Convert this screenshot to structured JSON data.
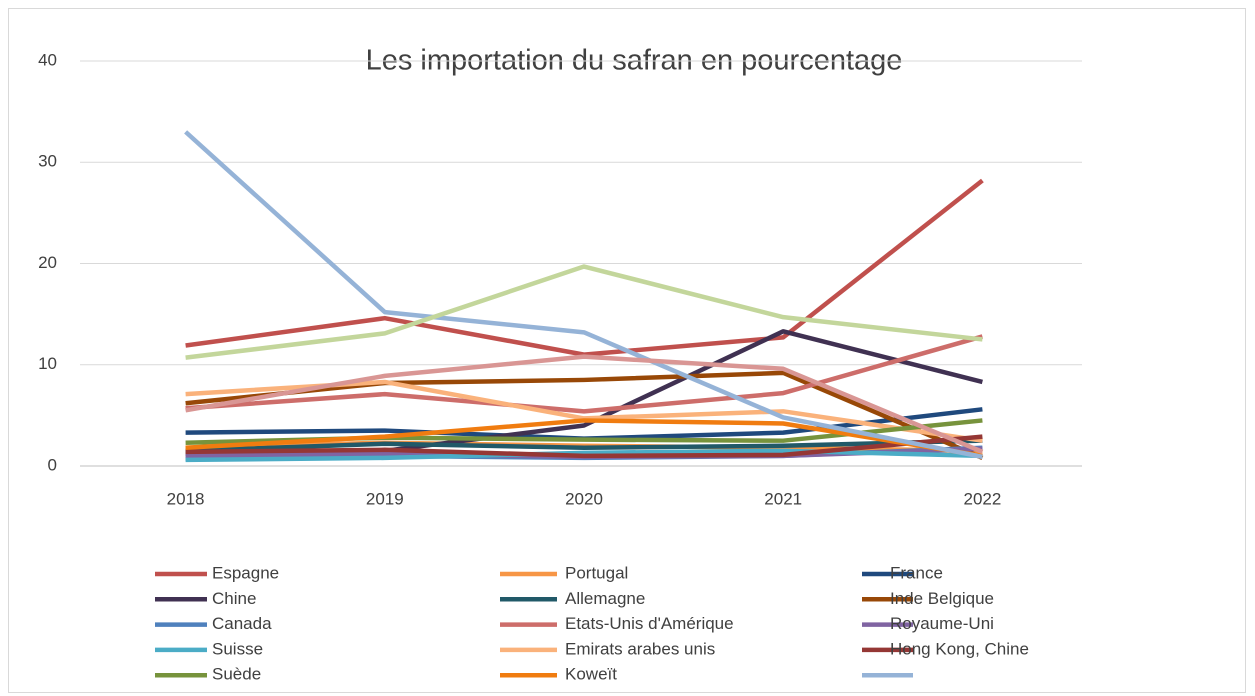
{
  "chart_data": {
    "type": "line",
    "title": "Les importation du safran en pourcentage",
    "categories": [
      "2018",
      "2019",
      "2020",
      "2021",
      "2022"
    ],
    "ylim": [
      0,
      40
    ],
    "yticks": [
      0,
      10,
      20,
      30,
      40
    ],
    "grid": true,
    "legend": "bottom",
    "series": [
      {
        "name": "Espagne",
        "color": "#c0504d",
        "values": [
          11.9,
          14.6,
          11.0,
          12.7,
          28.2
        ]
      },
      {
        "name": "Portugal",
        "color": "#f79646",
        "values": [
          1.8,
          2.3,
          2.0,
          1.8,
          1.5
        ]
      },
      {
        "name": "France",
        "color": "#1f497d",
        "values": [
          3.3,
          3.5,
          2.7,
          3.3,
          5.6
        ]
      },
      {
        "name": "Chine",
        "color": "#403152",
        "values": [
          1.2,
          1.5,
          4.0,
          13.3,
          8.3
        ]
      },
      {
        "name": "Allemagne",
        "color": "#215968",
        "values": [
          1.5,
          2.2,
          1.8,
          2.0,
          2.5
        ]
      },
      {
        "name": "Inde Belgique",
        "color": "#984807",
        "values": [
          6.2,
          8.2,
          8.5,
          9.2,
          0.8
        ]
      },
      {
        "name": "Canada",
        "color": "#4f81bd",
        "values": [
          0.7,
          1.0,
          0.8,
          1.0,
          1.8
        ]
      },
      {
        "name": "Etats-Unis d'Amérique",
        "color": "#cd6d6a",
        "values": [
          5.7,
          7.1,
          5.4,
          7.2,
          12.8
        ]
      },
      {
        "name": "Royaume-Uni",
        "color": "#8064a2",
        "values": [
          1.0,
          1.2,
          0.9,
          1.0,
          1.7
        ]
      },
      {
        "name": "Suisse",
        "color": "#4bacc6",
        "values": [
          0.6,
          0.8,
          1.3,
          1.5,
          1.0
        ]
      },
      {
        "name": "Emirats arabes unis",
        "color": "#fab27b",
        "values": [
          7.1,
          8.3,
          4.7,
          5.4,
          2.5
        ]
      },
      {
        "name": "Hong Kong, Chine",
        "color": "#953735",
        "values": [
          1.4,
          1.6,
          1.0,
          1.1,
          2.9
        ]
      },
      {
        "name": "Suède",
        "color": "#77933c",
        "values": [
          2.3,
          2.8,
          2.6,
          2.5,
          4.5
        ]
      },
      {
        "name": "Koweït",
        "color": "#f07c10",
        "values": [
          1.8,
          2.9,
          4.5,
          4.2,
          1.0
        ]
      },
      {
        "name": null,
        "color": "#95b3d7",
        "values": [
          33.0,
          15.2,
          13.2,
          4.8,
          0.9
        ]
      },
      {
        "color": "#c3d69b",
        "values": [
          10.7,
          13.1,
          19.7,
          14.7,
          12.5
        ]
      },
      {
        "color": "#d99694",
        "values": [
          5.5,
          8.9,
          10.8,
          9.6,
          1.4
        ]
      }
    ]
  }
}
